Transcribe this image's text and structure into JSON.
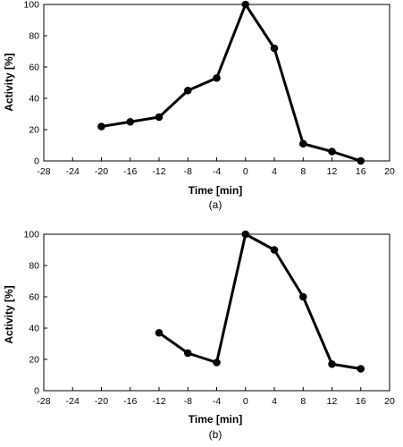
{
  "chart_data": [
    {
      "type": "line",
      "caption": "(a)",
      "xlabel": "Time [min]",
      "ylabel": "Activity [%]",
      "xlim": [
        -28,
        20
      ],
      "ylim": [
        0,
        100
      ],
      "xticks": [
        -28,
        -24,
        -20,
        -16,
        -12,
        -8,
        -4,
        0,
        4,
        8,
        12,
        16,
        20
      ],
      "yticks": [
        0,
        20,
        40,
        60,
        80,
        100
      ],
      "grid": false,
      "series": [
        {
          "color": "#000000",
          "marker": "circle",
          "x": [
            -20,
            -16,
            -12,
            -8,
            -4,
            0,
            4,
            8,
            12,
            16
          ],
          "y": [
            22,
            25,
            28,
            45,
            53,
            100,
            72,
            11,
            6,
            0
          ]
        }
      ]
    },
    {
      "type": "line",
      "caption": "(b)",
      "xlabel": "Time [min]",
      "ylabel": "Activity [%]",
      "xlim": [
        -28,
        20
      ],
      "ylim": [
        0,
        100
      ],
      "xticks": [
        -28,
        -24,
        -20,
        -16,
        -12,
        -8,
        -4,
        0,
        4,
        8,
        12,
        16,
        20
      ],
      "yticks": [
        0,
        20,
        40,
        60,
        80,
        100
      ],
      "grid": false,
      "series": [
        {
          "color": "#000000",
          "marker": "circle",
          "x": [
            -12,
            -8,
            -4,
            0,
            4,
            8,
            12,
            16
          ],
          "y": [
            37,
            24,
            18,
            100,
            90,
            60,
            17,
            14
          ]
        }
      ]
    }
  ]
}
